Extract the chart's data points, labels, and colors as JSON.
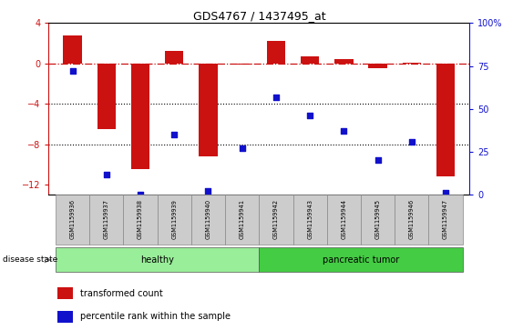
{
  "title": "GDS4767 / 1437495_at",
  "samples": [
    "GSM1159936",
    "GSM1159937",
    "GSM1159938",
    "GSM1159939",
    "GSM1159940",
    "GSM1159941",
    "GSM1159942",
    "GSM1159943",
    "GSM1159944",
    "GSM1159945",
    "GSM1159946",
    "GSM1159947"
  ],
  "transformed_count": [
    2.8,
    -6.5,
    -10.5,
    1.2,
    -9.2,
    -0.1,
    2.2,
    0.7,
    0.4,
    -0.5,
    0.1,
    -11.2
  ],
  "percentile_rank": [
    72,
    12,
    0,
    35,
    2,
    27,
    57,
    46,
    37,
    20,
    31,
    1
  ],
  "bar_color": "#cc1111",
  "scatter_color": "#1111cc",
  "ylim_left": [
    -13,
    4
  ],
  "ylim_right": [
    0,
    100
  ],
  "yticks_left": [
    4,
    0,
    -4,
    -8,
    -12
  ],
  "yticks_right": [
    100,
    75,
    50,
    25,
    0
  ],
  "dotted_lines": [
    -4,
    -8
  ],
  "group_bounds": [
    {
      "start": 0,
      "end": 5,
      "label": "healthy",
      "color": "#99ee99"
    },
    {
      "start": 6,
      "end": 11,
      "label": "pancreatic tumor",
      "color": "#44cc44"
    }
  ],
  "disease_state_label": "disease state",
  "legend_items": [
    {
      "color": "#cc1111",
      "label": "transformed count"
    },
    {
      "color": "#1111cc",
      "label": "percentile rank within the sample"
    }
  ],
  "bg_color": "#ffffff",
  "bar_width": 0.55
}
